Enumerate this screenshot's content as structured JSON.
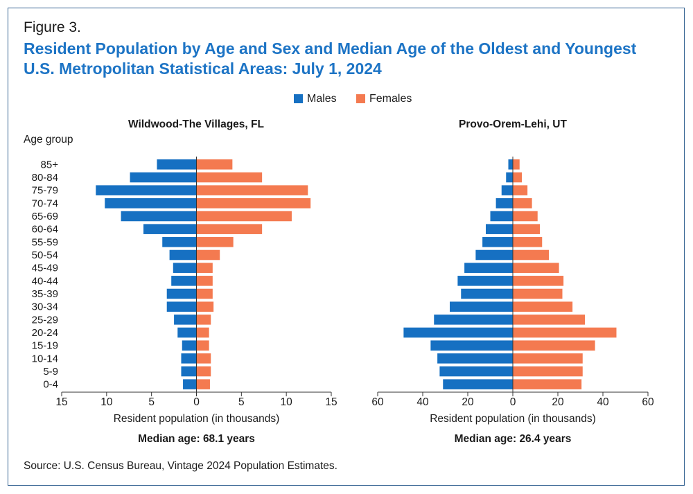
{
  "figure": {
    "label": "Figure 3.",
    "title": "Resident Population by Age and Sex and Median Age of the Oldest and Youngest U.S. Metropolitan Statistical Areas: July 1, 2024",
    "source": "Source: U.S. Census Bureau, Vintage 2024 Population Estimates."
  },
  "legend": {
    "males_label": "Males",
    "females_label": "Females",
    "males_color": "#1670c2",
    "females_color": "#f47a50"
  },
  "chart_data": [
    {
      "type": "bar",
      "orientation": "horizontal",
      "subtype": "population-pyramid",
      "title": "Wildwood-The Villages, FL",
      "ylabel": "Age group",
      "xlabel": "Resident population (in thousands)",
      "xlim": [
        -15,
        15
      ],
      "xticks": [
        -15,
        -10,
        -5,
        0,
        5,
        10,
        15
      ],
      "xtick_labels": [
        "15",
        "10",
        "5",
        "0",
        "5",
        "10",
        "15"
      ],
      "median_age_label": "Median age: 68.1 years",
      "categories": [
        "85+",
        "80-84",
        "75-79",
        "70-74",
        "65-69",
        "60-64",
        "55-59",
        "50-54",
        "45-49",
        "40-44",
        "35-39",
        "30-34",
        "25-29",
        "20-24",
        "15-19",
        "10-14",
        "5-9",
        "0-4"
      ],
      "series": [
        {
          "name": "Males",
          "values": [
            4.4,
            7.4,
            11.2,
            10.2,
            8.4,
            5.9,
            3.8,
            3.0,
            2.6,
            2.8,
            3.3,
            3.3,
            2.5,
            2.1,
            1.6,
            1.7,
            1.7,
            1.5
          ]
        },
        {
          "name": "Females",
          "values": [
            4.0,
            7.3,
            12.4,
            12.7,
            10.6,
            7.3,
            4.1,
            2.6,
            1.8,
            1.8,
            1.8,
            1.9,
            1.6,
            1.4,
            1.4,
            1.6,
            1.6,
            1.5
          ]
        }
      ]
    },
    {
      "type": "bar",
      "orientation": "horizontal",
      "subtype": "population-pyramid",
      "title": "Provo-Orem-Lehi, UT",
      "ylabel": "",
      "xlabel": "Resident population (in thousands)",
      "xlim": [
        -60,
        60
      ],
      "xticks": [
        -60,
        -40,
        -20,
        0,
        20,
        40,
        60
      ],
      "xtick_labels": [
        "60",
        "40",
        "20",
        "0",
        "20",
        "40",
        "60"
      ],
      "median_age_label": "Median age: 26.4 years",
      "categories": [
        "85+",
        "80-84",
        "75-79",
        "70-74",
        "65-69",
        "60-64",
        "55-59",
        "50-54",
        "45-49",
        "40-44",
        "35-39",
        "30-34",
        "25-29",
        "20-24",
        "15-19",
        "10-14",
        "5-9",
        "0-4"
      ],
      "series": [
        {
          "name": "Males",
          "values": [
            2.0,
            3.0,
            5.0,
            7.5,
            10.0,
            12.0,
            13.5,
            16.5,
            21.5,
            24.5,
            23.0,
            28.0,
            35.0,
            48.5,
            36.5,
            33.5,
            32.5,
            31.0
          ]
        },
        {
          "name": "Females",
          "values": [
            3.0,
            4.0,
            6.5,
            8.5,
            11.0,
            12.0,
            13.0,
            16.0,
            20.5,
            22.5,
            22.0,
            26.5,
            32.0,
            46.0,
            36.5,
            31.0,
            31.0,
            30.5
          ]
        }
      ]
    }
  ]
}
